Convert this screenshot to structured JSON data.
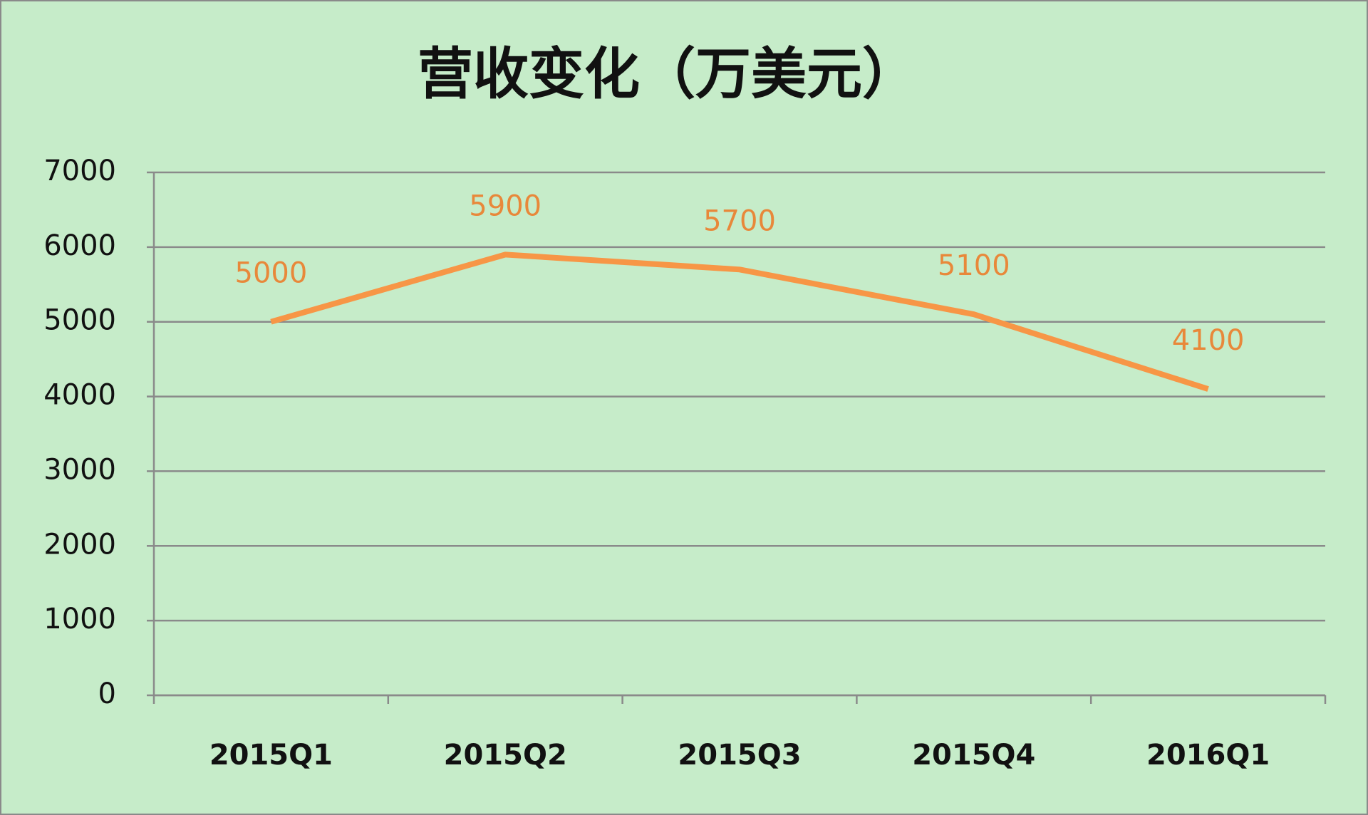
{
  "chart_data": {
    "type": "line",
    "title": "营收变化（万美元）",
    "categories": [
      "2015Q1",
      "2015Q2",
      "2015Q3",
      "2015Q4",
      "2016Q1"
    ],
    "series": [
      {
        "name": "营收",
        "color": "#f79646",
        "values": [
          5000,
          5900,
          5700,
          5100,
          4100
        ]
      }
    ],
    "ylim": [
      0,
      7000
    ],
    "yticks": [
      0,
      1000,
      2000,
      3000,
      4000,
      5000,
      6000,
      7000
    ],
    "grid": true,
    "legend": false,
    "data_labels": true
  }
}
